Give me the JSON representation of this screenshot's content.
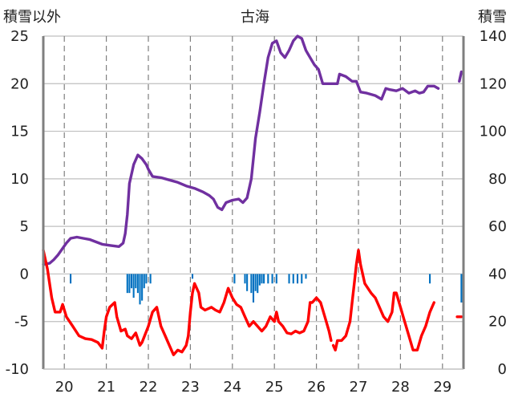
{
  "chart_data": {
    "type": "line",
    "title": "古海",
    "left_axis_label": "積雪以外",
    "right_axis_label": "積雪",
    "x_ticks": [
      "20",
      "21",
      "22",
      "23",
      "24",
      "25",
      "26",
      "27",
      "28",
      "29"
    ],
    "y_left": {
      "min": -10,
      "max": 25,
      "step": 5,
      "ticks": [
        "25",
        "20",
        "15",
        "10",
        "5",
        "0",
        "-5",
        "-10"
      ]
    },
    "y_right": {
      "min": 0,
      "max": 140,
      "step": 20,
      "ticks": [
        "140",
        "120",
        "100",
        "80",
        "60",
        "40",
        "20",
        "0"
      ]
    },
    "x_range": [
      19.5,
      29.5
    ],
    "grid": {
      "horizontal": "solid",
      "vertical": "dashed"
    },
    "colors": {
      "snow_depth": "#7030A0",
      "temperature": "#FF0000",
      "precipitation": "#0070C0"
    },
    "series": [
      {
        "key": "snow_depth",
        "axis": "right",
        "style": "line",
        "points": [
          [
            19.5,
            44
          ],
          [
            19.65,
            44.5
          ],
          [
            19.75,
            46
          ],
          [
            19.85,
            48
          ],
          [
            19.95,
            50.5
          ],
          [
            20.05,
            53
          ],
          [
            20.15,
            55
          ],
          [
            20.3,
            55.5
          ],
          [
            20.45,
            55
          ],
          [
            20.6,
            54.5
          ],
          [
            20.75,
            53.5
          ],
          [
            20.9,
            52.5
          ],
          [
            21.1,
            52
          ],
          [
            21.3,
            51.5
          ],
          [
            21.4,
            53
          ],
          [
            21.45,
            57
          ],
          [
            21.5,
            65
          ],
          [
            21.55,
            78
          ],
          [
            21.65,
            86
          ],
          [
            21.75,
            90
          ],
          [
            21.85,
            88.5
          ],
          [
            21.95,
            86
          ],
          [
            22.0,
            84
          ],
          [
            22.1,
            81
          ],
          [
            22.3,
            80.5
          ],
          [
            22.5,
            79.5
          ],
          [
            22.7,
            78.5
          ],
          [
            22.9,
            77
          ],
          [
            23.1,
            76
          ],
          [
            23.3,
            74.5
          ],
          [
            23.45,
            73
          ],
          [
            23.55,
            71.5
          ],
          [
            23.65,
            68
          ],
          [
            23.75,
            67
          ],
          [
            23.85,
            70
          ],
          [
            24.0,
            71
          ],
          [
            24.15,
            71.5
          ],
          [
            24.25,
            70
          ],
          [
            24.35,
            72
          ],
          [
            24.45,
            80
          ],
          [
            24.55,
            97
          ],
          [
            24.65,
            108
          ],
          [
            24.75,
            120
          ],
          [
            24.85,
            131
          ],
          [
            24.95,
            137
          ],
          [
            25.05,
            138
          ],
          [
            25.15,
            133
          ],
          [
            25.25,
            131
          ],
          [
            25.35,
            134
          ],
          [
            25.45,
            138
          ],
          [
            25.55,
            140
          ],
          [
            25.65,
            139
          ],
          [
            25.75,
            134
          ],
          [
            25.85,
            131
          ],
          [
            25.95,
            128
          ],
          [
            26.05,
            126
          ],
          [
            26.15,
            120
          ],
          [
            26.3,
            120
          ],
          [
            26.5,
            120
          ],
          [
            26.55,
            124
          ],
          [
            26.7,
            123
          ],
          [
            26.85,
            121
          ],
          [
            26.95,
            121
          ],
          [
            27.05,
            116.5
          ],
          [
            27.2,
            116
          ],
          [
            27.4,
            115
          ],
          [
            27.55,
            113.5
          ],
          [
            27.65,
            118
          ],
          [
            27.75,
            117.5
          ],
          [
            27.9,
            117
          ],
          [
            28.05,
            118
          ],
          [
            28.2,
            116
          ],
          [
            28.35,
            117
          ],
          [
            28.45,
            116
          ],
          [
            28.55,
            116.5
          ],
          [
            28.65,
            119
          ],
          [
            28.8,
            119
          ],
          [
            28.9,
            118
          ],
          null,
          [
            29.4,
            121
          ],
          [
            29.45,
            125
          ]
        ]
      },
      {
        "key": "temperature",
        "axis": "left",
        "style": "line",
        "points": [
          [
            19.5,
            2.5
          ],
          [
            19.6,
            0.5
          ],
          [
            19.7,
            -2.5
          ],
          [
            19.78,
            -4
          ],
          [
            19.9,
            -4
          ],
          [
            19.96,
            -3.2
          ],
          [
            20.05,
            -4.5
          ],
          [
            20.2,
            -5.5
          ],
          [
            20.35,
            -6.5
          ],
          [
            20.5,
            -6.8
          ],
          [
            20.65,
            -6.9
          ],
          [
            20.8,
            -7.2
          ],
          [
            20.9,
            -7.8
          ],
          [
            20.95,
            -6
          ],
          [
            21.0,
            -4.5
          ],
          [
            21.08,
            -3.5
          ],
          [
            21.15,
            -3.2
          ],
          [
            21.2,
            -3
          ],
          [
            21.25,
            -4.5
          ],
          [
            21.35,
            -6
          ],
          [
            21.45,
            -5.8
          ],
          [
            21.5,
            -6.5
          ],
          [
            21.6,
            -6.8
          ],
          [
            21.7,
            -6.2
          ],
          [
            21.8,
            -7.5
          ],
          [
            21.85,
            -7.2
          ],
          [
            22.0,
            -5.5
          ],
          [
            22.1,
            -4
          ],
          [
            22.2,
            -3.5
          ],
          [
            22.3,
            -5.5
          ],
          [
            22.4,
            -6.5
          ],
          [
            22.5,
            -7.5
          ],
          [
            22.6,
            -8.5
          ],
          [
            22.7,
            -8
          ],
          [
            22.8,
            -8.2
          ],
          [
            22.9,
            -7.5
          ],
          [
            22.95,
            -6.5
          ],
          [
            23.0,
            -4
          ],
          [
            23.05,
            -2
          ],
          [
            23.1,
            -1
          ],
          [
            23.2,
            -2
          ],
          [
            23.25,
            -3.5
          ],
          [
            23.35,
            -3.8
          ],
          [
            23.5,
            -3.5
          ],
          [
            23.6,
            -3.8
          ],
          [
            23.7,
            -4
          ],
          [
            23.8,
            -3
          ],
          [
            23.9,
            -1.5
          ],
          [
            24.0,
            -2.5
          ],
          [
            24.1,
            -3.2
          ],
          [
            24.2,
            -3.5
          ],
          [
            24.3,
            -4.5
          ],
          [
            24.4,
            -5.5
          ],
          [
            24.5,
            -5
          ],
          [
            24.6,
            -5.5
          ],
          [
            24.7,
            -6
          ],
          [
            24.8,
            -5.5
          ],
          [
            24.9,
            -4.5
          ],
          [
            25.0,
            -5
          ],
          [
            25.05,
            -4
          ],
          [
            25.1,
            -5
          ],
          [
            25.2,
            -5.5
          ],
          [
            25.3,
            -6.2
          ],
          [
            25.4,
            -6.3
          ],
          [
            25.5,
            -6
          ],
          [
            25.6,
            -6.2
          ],
          [
            25.7,
            -6
          ],
          [
            25.8,
            -5
          ],
          [
            25.85,
            -3
          ],
          [
            25.9,
            -3
          ],
          [
            26.0,
            -2.5
          ],
          [
            26.1,
            -3
          ],
          [
            26.2,
            -4.5
          ],
          [
            26.3,
            -6
          ],
          [
            26.35,
            -7
          ],
          null,
          [
            26.4,
            -7.5
          ],
          [
            26.45,
            -8
          ],
          [
            26.5,
            -7
          ],
          [
            26.6,
            -7
          ],
          [
            26.7,
            -6.5
          ],
          [
            26.8,
            -5
          ],
          [
            26.85,
            -3
          ],
          [
            26.9,
            -1
          ],
          [
            26.95,
            1
          ],
          [
            27.0,
            2.5
          ],
          [
            27.05,
            1
          ],
          [
            27.15,
            -1
          ],
          [
            27.3,
            -2
          ],
          [
            27.4,
            -2.5
          ],
          [
            27.5,
            -3.5
          ],
          [
            27.6,
            -4.5
          ],
          [
            27.7,
            -5
          ],
          [
            27.8,
            -4
          ],
          [
            27.85,
            -2
          ],
          [
            27.9,
            -2
          ],
          [
            28.0,
            -3.5
          ],
          [
            28.1,
            -5
          ],
          [
            28.2,
            -6.5
          ],
          [
            28.3,
            -8
          ],
          [
            28.4,
            -8
          ],
          [
            28.5,
            -6.5
          ],
          [
            28.6,
            -5.5
          ],
          [
            28.7,
            -4
          ],
          [
            28.8,
            -3
          ],
          null,
          [
            29.35,
            -4.5
          ],
          [
            29.45,
            -4.5
          ]
        ]
      },
      {
        "key": "precipitation",
        "axis": "left",
        "style": "bars",
        "bar_width": 0.04,
        "points": [
          [
            20.15,
            -1
          ],
          [
            21.5,
            -2
          ],
          [
            21.55,
            -2
          ],
          [
            21.6,
            -1.5
          ],
          [
            21.65,
            -2.5
          ],
          [
            21.7,
            -1.5
          ],
          [
            21.75,
            -2
          ],
          [
            21.8,
            -3.2
          ],
          [
            21.85,
            -2.8
          ],
          [
            21.9,
            -1.5
          ],
          [
            21.95,
            -1
          ],
          [
            22.05,
            -1
          ],
          [
            23.05,
            -0.5
          ],
          [
            24.05,
            -1
          ],
          [
            24.3,
            -1
          ],
          [
            24.35,
            -1.8
          ],
          [
            24.45,
            -2
          ],
          [
            24.5,
            -3
          ],
          [
            24.55,
            -1.8
          ],
          [
            24.6,
            -2
          ],
          [
            24.65,
            -1.2
          ],
          [
            24.7,
            -1
          ],
          [
            24.75,
            -1
          ],
          [
            24.85,
            -1
          ],
          [
            24.95,
            -1
          ],
          [
            25.05,
            -1
          ],
          [
            25.35,
            -1
          ],
          [
            25.45,
            -1
          ],
          [
            25.55,
            -1
          ],
          [
            25.65,
            -1
          ],
          [
            25.75,
            -0.5
          ],
          [
            28.7,
            -1
          ],
          [
            29.45,
            -3
          ]
        ]
      }
    ]
  }
}
